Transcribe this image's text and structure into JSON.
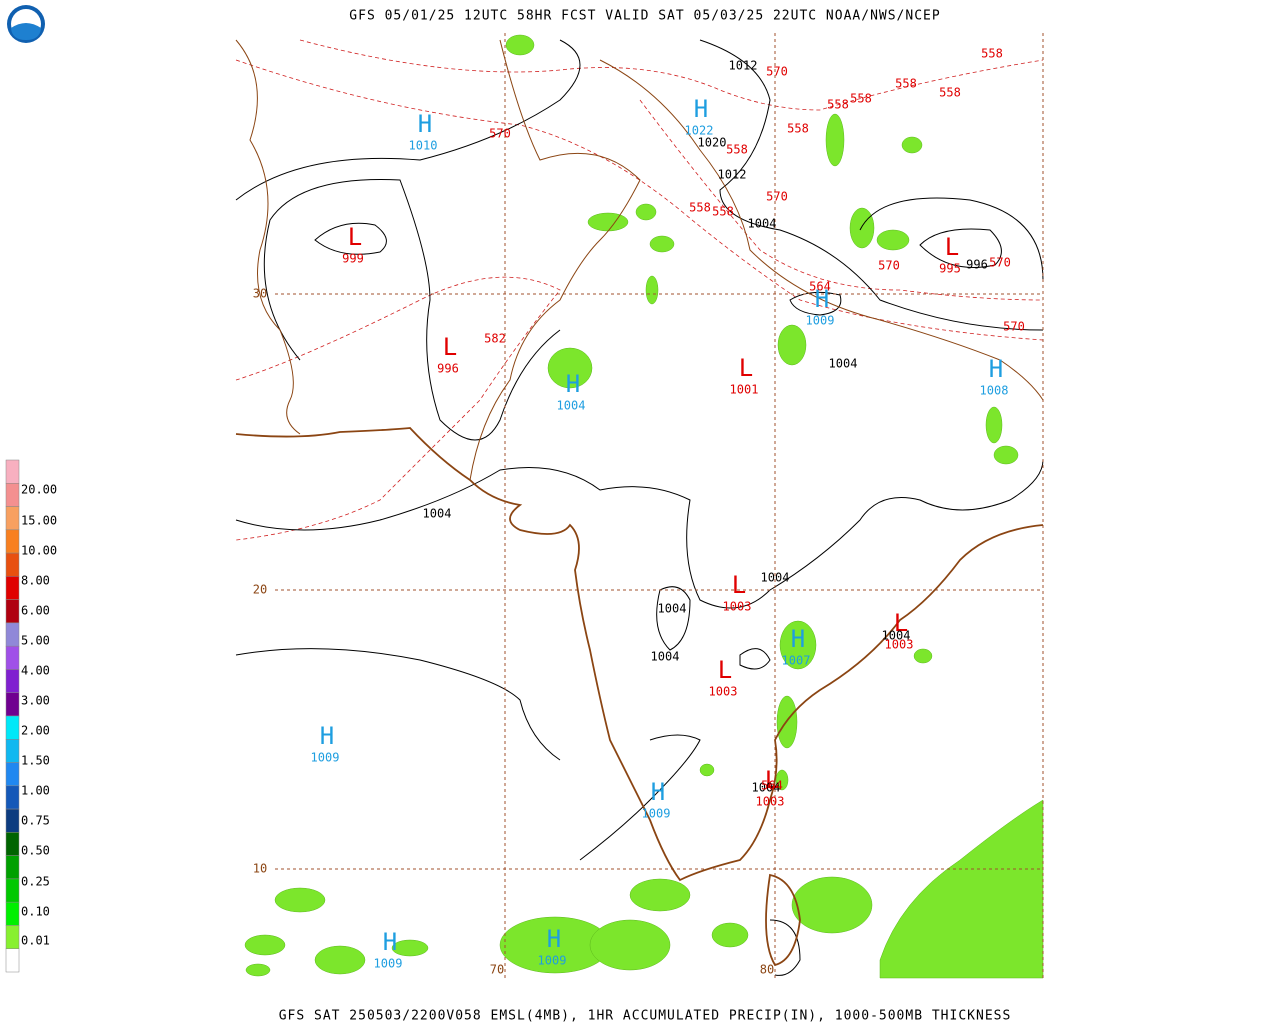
{
  "header": {
    "title": "GFS 05/01/25 12UTC 58HR FCST VALID SAT 05/03/25 22UTC NOAA/NWS/NCEP"
  },
  "footer": "GFS SAT 250503/2200V058 EMSL(4MB), 1HR ACCUMULATED PRECIP(IN), 1000-500MB THICKNESS",
  "legend": [
    "20.00",
    "15.00",
    "10.00",
    "8.00",
    "6.00",
    "5.00",
    "4.00",
    "3.00",
    "2.00",
    "1.50",
    "1.00",
    "0.75",
    "0.50",
    "0.25",
    "0.10",
    "0.01"
  ],
  "center_colors": {
    "H": "#1e9ee0",
    "L": "#e00000"
  },
  "centers": [
    {
      "symbol": "H",
      "pressure": "1010"
    },
    {
      "symbol": "L",
      "pressure": "999"
    },
    {
      "symbol": "H",
      "pressure": "1022"
    },
    {
      "symbol": "L",
      "pressure": "995"
    },
    {
      "symbol": "H",
      "pressure": "1009"
    },
    {
      "symbol": "L",
      "pressure": "996"
    },
    {
      "symbol": "H",
      "pressure": "1004"
    },
    {
      "symbol": "L",
      "pressure": "1001"
    },
    {
      "symbol": "H",
      "pressure": "1008"
    },
    {
      "symbol": "L",
      "pressure": "1003"
    },
    {
      "symbol": "H",
      "pressure": "1007"
    },
    {
      "symbol": "L",
      "pressure": "1003"
    },
    {
      "symbol": "L",
      "pressure": "1003"
    },
    {
      "symbol": "H",
      "pressure": "1009"
    },
    {
      "symbol": "H",
      "pressure": "1009"
    },
    {
      "symbol": "L",
      "pressure": "1003"
    },
    {
      "symbol": "H",
      "pressure": "1009"
    },
    {
      "symbol": "H",
      "pressure": "1009"
    }
  ],
  "isobar_labels": [
    "1012",
    "1020",
    "1012",
    "1004",
    "996",
    "1004",
    "1004",
    "1004",
    "1004",
    "1004",
    "1004",
    "1004"
  ],
  "thickness_labels": [
    "558",
    "570",
    "558",
    "558",
    "558",
    "558",
    "558",
    "570",
    "558",
    "570",
    "558",
    "558",
    "570",
    "570",
    "564",
    "582",
    "570",
    "564"
  ],
  "lat_labels": [
    "30",
    "20",
    "10"
  ],
  "lon_labels": [
    "70",
    "80"
  ]
}
